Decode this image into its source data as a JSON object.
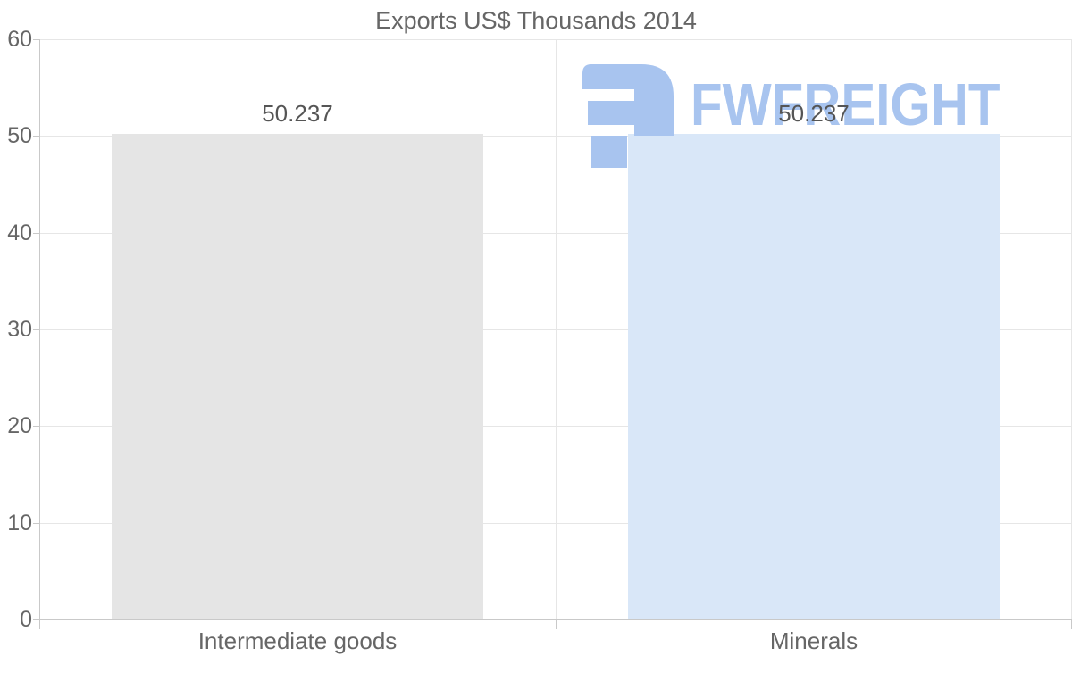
{
  "watermark": {
    "text": "FWFREIGHT",
    "color": "#a8c4ef"
  },
  "chart_data": {
    "type": "bar",
    "title": "Exports US$ Thousands 2014",
    "categories": [
      "Intermediate goods",
      "Minerals"
    ],
    "values": [
      50.237,
      50.237
    ],
    "value_labels": [
      "50.237",
      "50.237"
    ],
    "bar_colors": [
      "#e5e5e5",
      "#d9e7f8"
    ],
    "xlabel": "",
    "ylabel": "",
    "ylim": [
      0,
      60
    ],
    "yticks": [
      0,
      10,
      20,
      30,
      40,
      50,
      60
    ],
    "grid": true,
    "legend_position": "none",
    "colors": {
      "title": "#666666",
      "tick_label": "#666666",
      "category_label": "#666666",
      "data_label": "#555555",
      "grid": "#e6e6e6",
      "axis_line": "#c9c9c9",
      "watermark": "#a8c4ef"
    }
  }
}
